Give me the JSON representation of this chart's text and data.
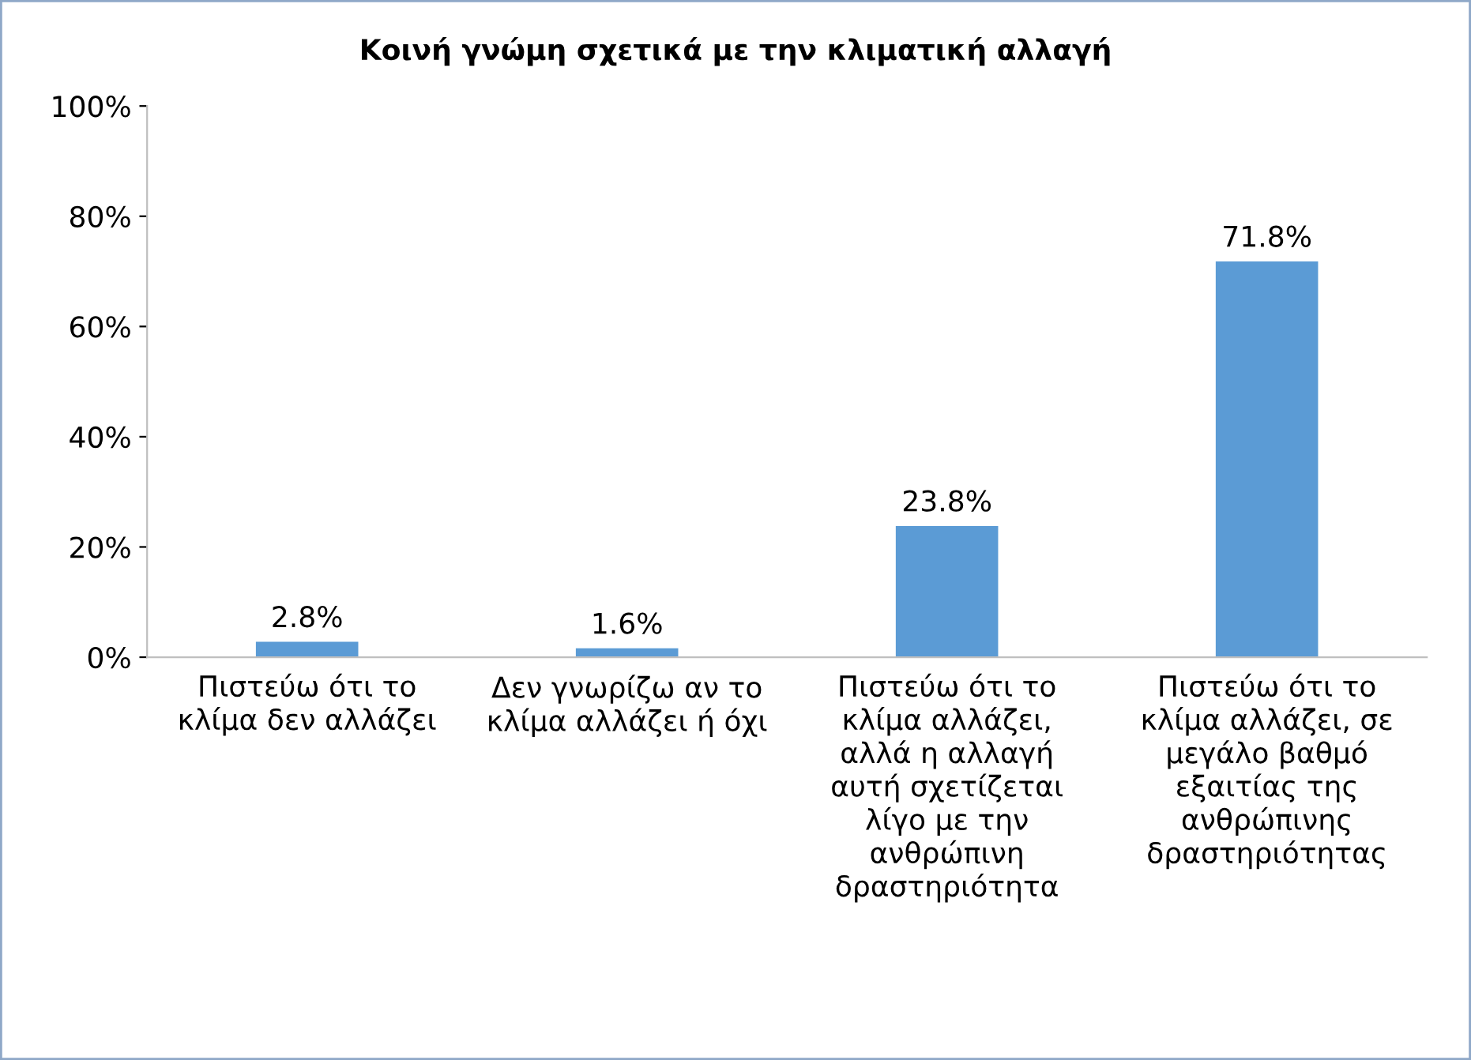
{
  "chart_data": {
    "type": "bar",
    "title": "Κοινή γνώμη σχετικά με την κλιματική αλλαγή",
    "categories": [
      "Πιστεύω ότι το\nκλίμα δεν αλλάζει",
      "Δεν γνωρίζω αν το\nκλίμα αλλάζει ή όχι",
      "Πιστεύω ότι το\nκλίμα αλλάζει,\nαλλά η αλλαγή\nαυτή σχετίζεται\nλίγο με την\nανθρώπινη\nδραστηριότητα",
      "Πιστεύω ότι το\nκλίμα αλλάζει, σε\nμεγάλο βαθμό\nεξαιτίας της\nανθρώπινης\nδραστηριότητας"
    ],
    "values": [
      2.8,
      1.6,
      23.8,
      71.8
    ],
    "value_labels": [
      "2.8%",
      "1.6%",
      "23.8%",
      "71.8%"
    ],
    "color": "#5b9bd5",
    "ylim": [
      0,
      100
    ],
    "yticks": [
      {
        "value": 0,
        "label": "0%"
      },
      {
        "value": 20,
        "label": "20%"
      },
      {
        "value": 40,
        "label": "40%"
      },
      {
        "value": 60,
        "label": "60%"
      },
      {
        "value": 80,
        "label": "80%"
      },
      {
        "value": 100,
        "label": "100%"
      }
    ],
    "grid": false,
    "legend": false
  }
}
